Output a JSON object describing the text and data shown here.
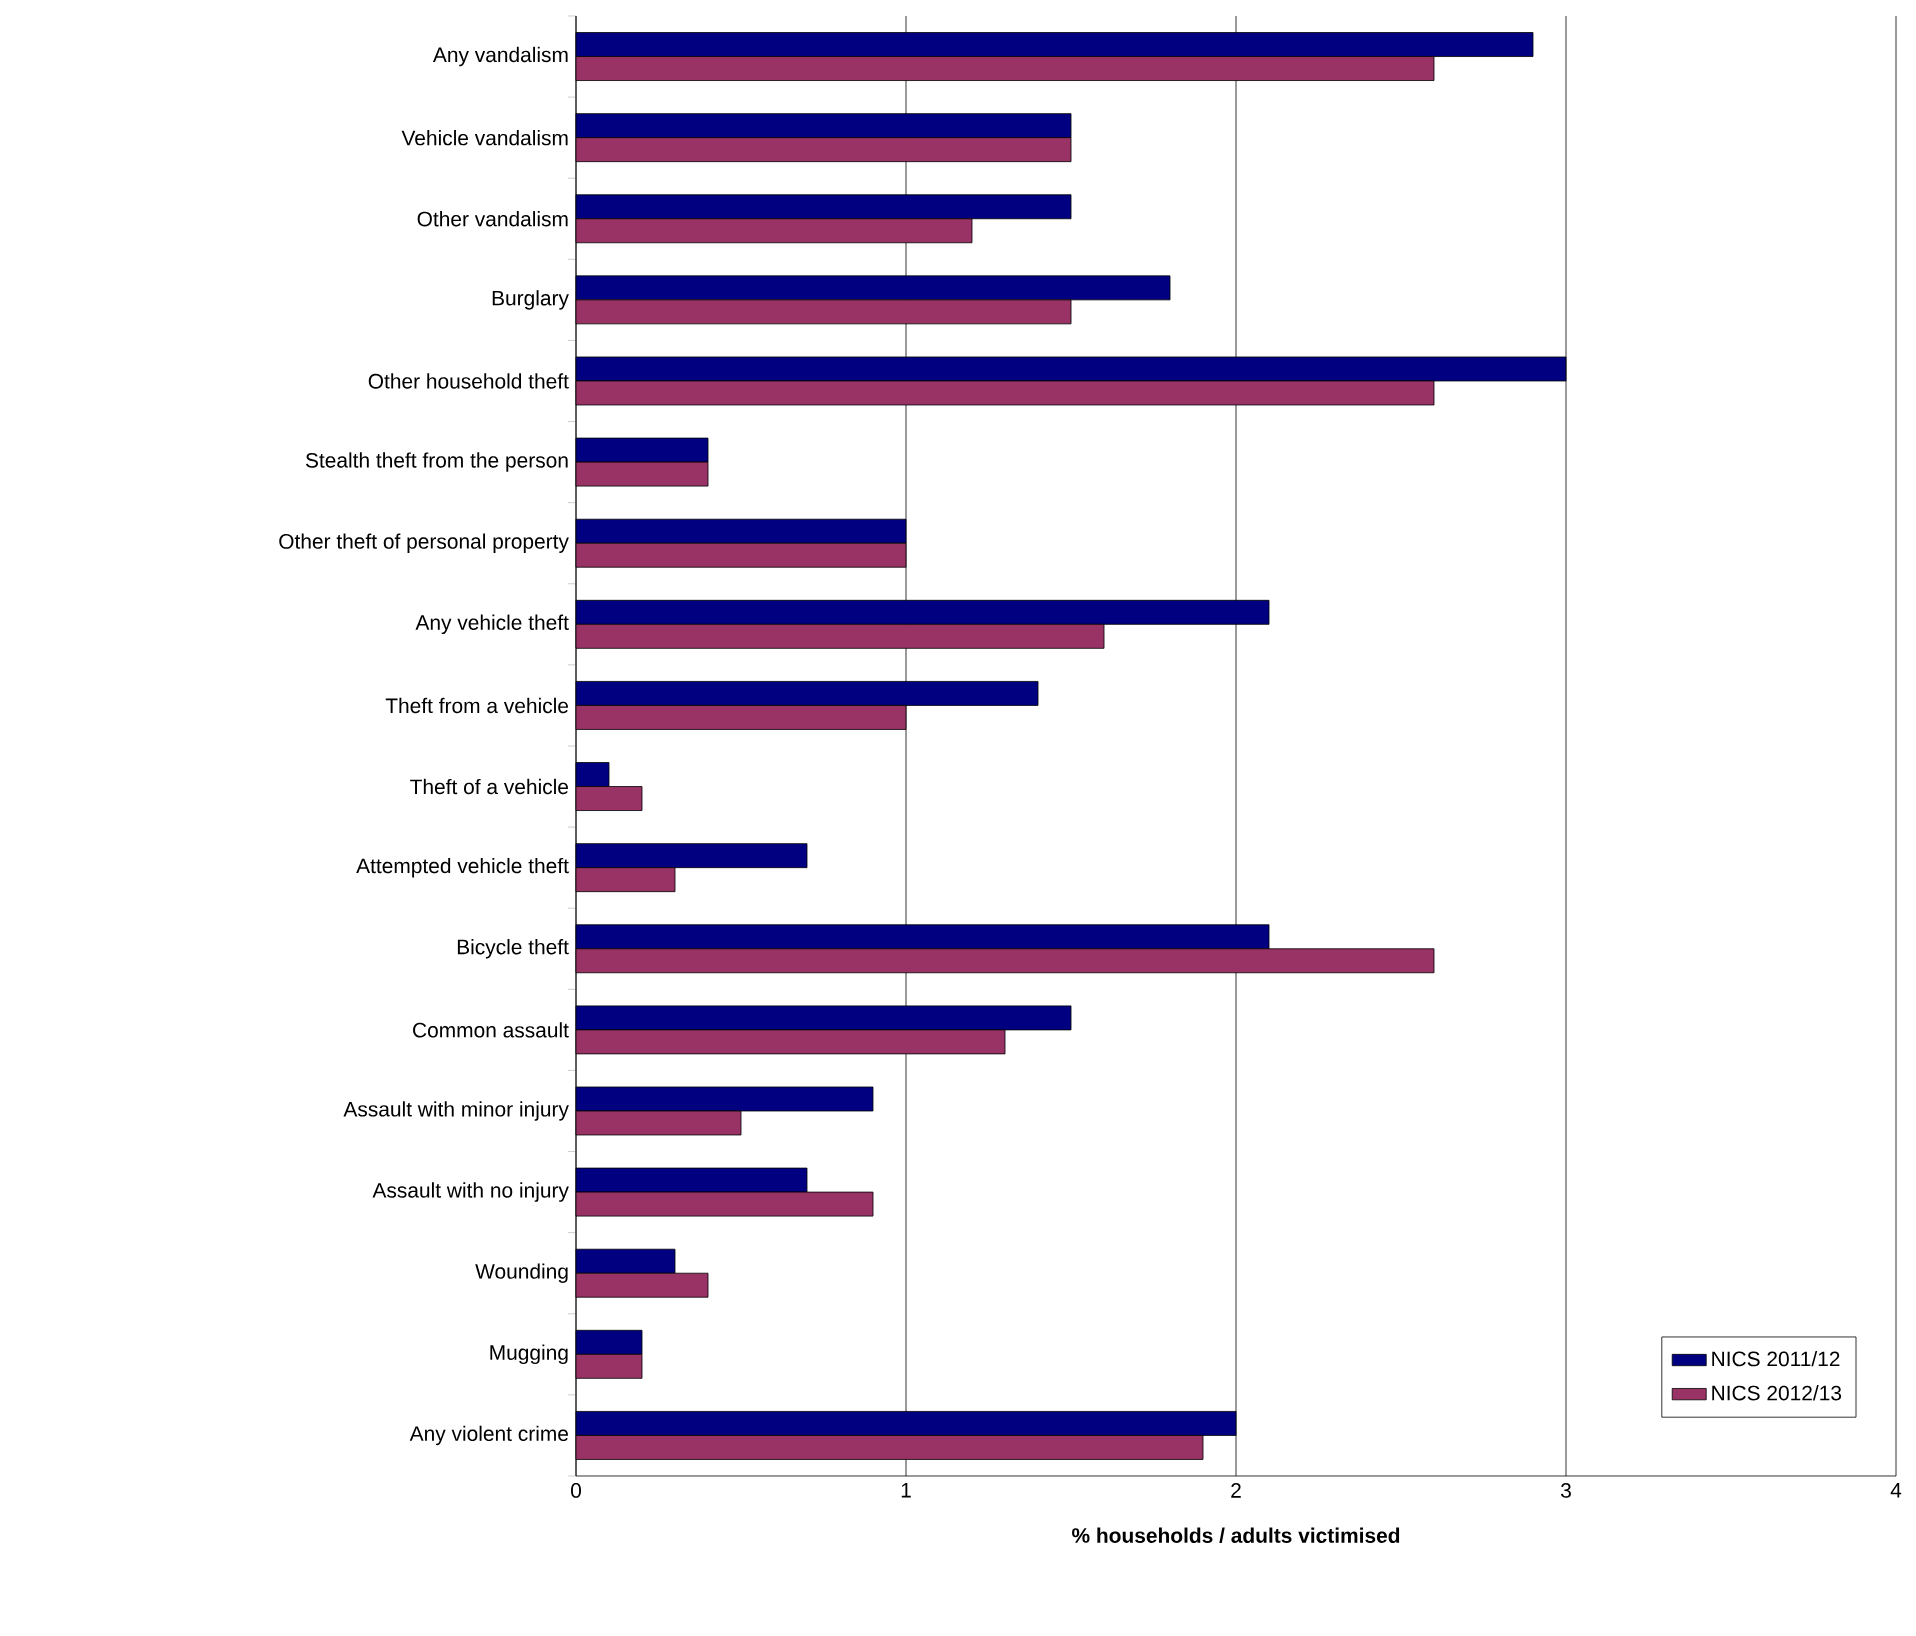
{
  "chart_data": {
    "type": "bar",
    "orientation": "horizontal",
    "xlabel": "% households / adults victimised",
    "categories": [
      "Any vandalism",
      "Vehicle vandalism",
      "Other vandalism",
      "Burglary",
      "Other household theft",
      "Stealth theft from the person",
      "Other theft of personal property",
      "Any vehicle theft",
      "Theft from a vehicle",
      "Theft of a vehicle",
      "Attempted vehicle theft",
      "Bicycle theft",
      "Common assault",
      "Assault with minor injury",
      "Assault with no injury",
      "Wounding",
      "Mugging",
      "Any violent crime"
    ],
    "series": [
      {
        "name": "NICS 2011/12",
        "color": "#000080",
        "values": [
          2.9,
          1.5,
          1.5,
          1.8,
          3.0,
          0.4,
          1.0,
          2.1,
          1.4,
          0.1,
          0.7,
          2.1,
          1.5,
          0.9,
          0.7,
          0.3,
          0.2,
          2.0
        ]
      },
      {
        "name": "NICS 2012/13",
        "color": "#993366",
        "values": [
          2.6,
          1.5,
          1.2,
          1.5,
          2.6,
          0.4,
          1.0,
          1.6,
          1.0,
          0.2,
          0.3,
          2.6,
          1.3,
          0.5,
          0.9,
          0.4,
          0.2,
          1.9
        ]
      }
    ],
    "xlim": [
      0,
      4
    ],
    "xticks": [
      0,
      1,
      2,
      3,
      4
    ],
    "grid": "x",
    "legend": "bottom right"
  }
}
